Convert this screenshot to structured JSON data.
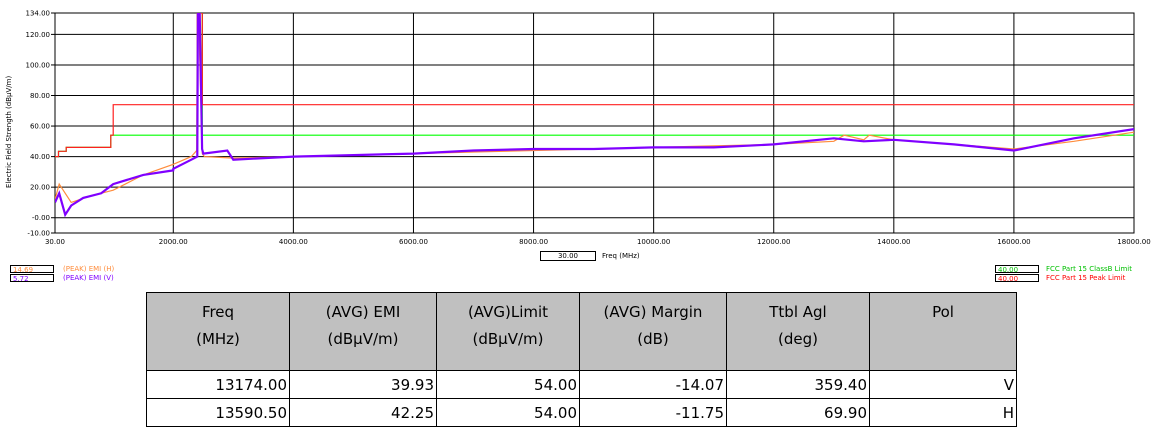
{
  "chart_data": {
    "type": "line",
    "ylabel": "Electric Field Strength (dBµV/m)",
    "xlabel": "Freq (MHz)",
    "xlim": [
      30,
      18000
    ],
    "ylim": [
      -10,
      134
    ],
    "x_ticks": [
      "30.00",
      "2000.00",
      "4000.00",
      "6000.00",
      "8000.00",
      "10000.00",
      "12000.00",
      "14000.00",
      "16000.00",
      "18000.00"
    ],
    "x_tick_values": [
      30,
      2000,
      4000,
      6000,
      8000,
      10000,
      12000,
      14000,
      16000,
      18000
    ],
    "y_ticks": [
      "134.00",
      "120.00",
      "100.00",
      "80.00",
      "60.00",
      "40.00",
      "20.00",
      "-0.00",
      "-10.00"
    ],
    "y_tick_values": [
      134,
      120,
      100,
      80,
      60,
      40,
      20,
      0,
      -10
    ],
    "grid": true,
    "series": [
      {
        "name": "(PEAK) EMI (H)",
        "color": "#ff8c3c",
        "legend_value": "14.69",
        "x": [
          30,
          100,
          300,
          600,
          1000,
          1500,
          2000,
          2300,
          2390,
          2400,
          2420,
          2483,
          2500,
          2520,
          3000,
          4000,
          5000,
          6000,
          7000,
          8000,
          9000,
          10000,
          11000,
          12000,
          13000,
          13174,
          13500,
          13590,
          14000,
          15000,
          16000,
          17000,
          18000
        ],
        "y": [
          12,
          22,
          10,
          14,
          18,
          28,
          35,
          40,
          44,
          134,
          134,
          42,
          41,
          40,
          39,
          40,
          41,
          42,
          43,
          44,
          45,
          46,
          47,
          48,
          50,
          54,
          51,
          54,
          51,
          48,
          45,
          50,
          56
        ]
      },
      {
        "name": "(PEAK) EMI (V)",
        "color": "#8000ff",
        "legend_value": "5.72",
        "x": [
          30,
          100,
          200,
          300,
          500,
          800,
          1000,
          1500,
          1999,
          2000,
          2300,
          2400,
          2410,
          2440,
          2480,
          2500,
          2900,
          3000,
          4000,
          5000,
          6000,
          7000,
          8000,
          9000,
          10000,
          11000,
          12000,
          13000,
          13500,
          14000,
          15000,
          15500,
          16000,
          16500,
          17000,
          18000
        ],
        "y": [
          10,
          16,
          2,
          8,
          13,
          16,
          22,
          28,
          31,
          32,
          38,
          40,
          134,
          134,
          45,
          42,
          44,
          38,
          40,
          41,
          42,
          44,
          45,
          45,
          46,
          46,
          48,
          52,
          50,
          51,
          48,
          46,
          44,
          48,
          52,
          58
        ]
      },
      {
        "name": "FCC Part 15 Class B Limit",
        "color": "#00ff00",
        "legend_value": "40.00",
        "x": [
          30,
          30,
          88,
          88,
          216,
          216,
          960,
          960,
          2400,
          2400,
          2483,
          2483,
          18000
        ],
        "y": [
          40,
          40,
          40,
          43.5,
          43.5,
          46,
          46,
          54,
          54,
          134,
          134,
          54,
          54
        ]
      },
      {
        "name": "FCC Part 15 Peak Limit",
        "color": "#ff2020",
        "legend_value": "40.00",
        "x": [
          30,
          88,
          88,
          216,
          216,
          960,
          960,
          1000,
          1000,
          2400,
          2400,
          2483,
          2483,
          18000
        ],
        "y": [
          40,
          40,
          43.5,
          43.5,
          46,
          46,
          54,
          54,
          74,
          74,
          134,
          134,
          74,
          74
        ]
      }
    ]
  },
  "legend_left": [
    {
      "value": "14.69",
      "label": "(PEAK) EMI (H)",
      "color": "#ff8c3c"
    },
    {
      "value": "5.72",
      "label": "(PEAK) EMI (V)",
      "color": "#8000ff"
    }
  ],
  "legend_right": [
    {
      "value": "40.00",
      "label": "FCC Part 15 ClassB Limit",
      "color": "#00c000"
    },
    {
      "value": "40.00",
      "label": "FCC Part 15 Peak Limit",
      "color": "#ff0000"
    }
  ],
  "freq_readout": "30.00",
  "freq_label": "Freq (MHz)",
  "table": {
    "headers": [
      [
        "Freq",
        "(MHz)"
      ],
      [
        "(AVG) EMI",
        "(dBµV/m)"
      ],
      [
        "(AVG)Limit",
        "(dBµV/m)"
      ],
      [
        "(AVG) Margin",
        "(dB)"
      ],
      [
        "Ttbl Agl",
        "(deg)"
      ],
      [
        "Pol",
        ""
      ]
    ],
    "rows": [
      [
        "13174.00",
        "39.93",
        "54.00",
        "-14.07",
        "359.40",
        "V"
      ],
      [
        "13590.50",
        "42.25",
        "54.00",
        "-11.75",
        "69.90",
        "H"
      ]
    ]
  }
}
